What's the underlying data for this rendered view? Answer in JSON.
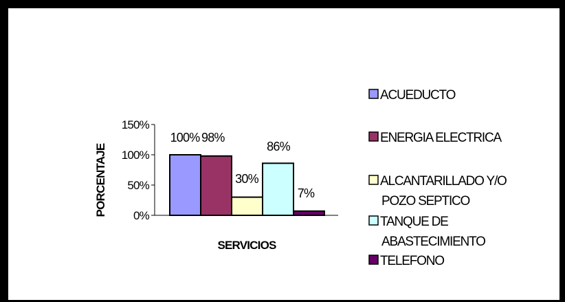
{
  "chart_data": {
    "type": "bar",
    "categories": [
      "ACUEDUCTO",
      "ENERGIA ELECTRICA",
      "ALCANTARILLADO Y/O POZO SEPTICO",
      "TANQUE DE ABASTECIMIENTO",
      "TELEFONO"
    ],
    "values": [
      100,
      98,
      30,
      86,
      7
    ],
    "value_labels": [
      "100%",
      "98%",
      "30%",
      "86%",
      "7%"
    ],
    "colors": [
      "#9999ff",
      "#993366",
      "#ffffcc",
      "#ccffff",
      "#660066"
    ],
    "xlabel": "SERVICIOS",
    "ylabel": "PORCENTAJE",
    "ylim": [
      0,
      150
    ],
    "yticks": [
      "0%",
      "50%",
      "100%",
      "150%"
    ],
    "legend": {
      "position": "right",
      "entries": [
        {
          "lines": [
            "ACUEDUCTO"
          ]
        },
        {
          "lines": [
            "ENERGIA ELECTRICA"
          ]
        },
        {
          "lines": [
            "ALCANTARILLADO Y/O",
            "POZO SEPTICO"
          ]
        },
        {
          "lines": [
            "TANQUE DE",
            "ABASTECIMIENTO"
          ]
        },
        {
          "lines": [
            "TELEFONO"
          ]
        }
      ]
    },
    "grid": false
  }
}
